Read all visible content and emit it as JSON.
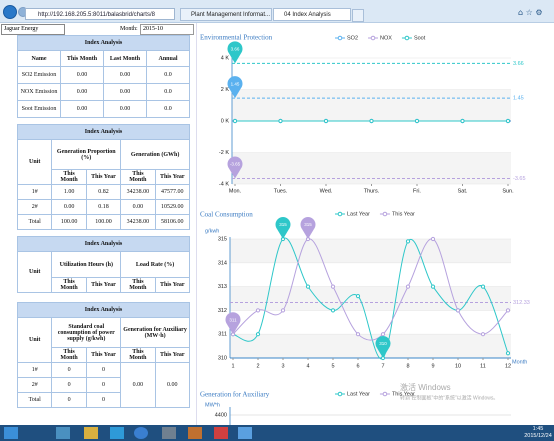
{
  "browser": {
    "url": "http://192.168.205.5:8011/balasbrid/charts/8",
    "tabs": [
      "Plant Management Informat...",
      "04 Index Analysis"
    ]
  },
  "filters": {
    "plant": "Jaguar Energy",
    "month_label": "Month:",
    "month": "2015-10"
  },
  "tables": [
    {
      "title": "Index Analysis",
      "columns": [
        "Name",
        "This Month",
        "Last Month",
        "Annual"
      ],
      "rows": [
        [
          "SO2 Emission",
          "0.00",
          "0.00",
          "0.0"
        ],
        [
          "NOX Emission",
          "0.00",
          "0.00",
          "0.0"
        ],
        [
          "Soot Emission",
          "0.00",
          "0.00",
          "0.0"
        ]
      ]
    },
    {
      "title": "Index Analysis",
      "unit_label": "Unit",
      "groups": [
        {
          "name": "Generation Proportion (%)",
          "subs": [
            "This Month",
            "This Year"
          ]
        },
        {
          "name": "Generation (GWh)",
          "subs": [
            "This Month",
            "This Year"
          ]
        }
      ],
      "rows": [
        [
          "1#",
          "1.00",
          "0.82",
          "34238.00",
          "47577.00"
        ],
        [
          "2#",
          "0.00",
          "0.18",
          "0.00",
          "10529.00"
        ],
        [
          "Total",
          "100.00",
          "100.00",
          "34238.00",
          "58106.00"
        ]
      ]
    },
    {
      "title": "Index Analysis",
      "unit_label": "Unit",
      "groups": [
        {
          "name": "Utilization Hours (h)",
          "subs": [
            "This Month",
            "This Year"
          ]
        },
        {
          "name": "Load Rate (%)",
          "subs": [
            "This Month",
            "This Year"
          ]
        }
      ],
      "rows": []
    },
    {
      "title": "Index Analysis",
      "unit_label": "Unit",
      "groups": [
        {
          "name": "Standard coal consumption of power supply (g/kwh)",
          "subs": [
            "This Month",
            "This Year"
          ]
        },
        {
          "name": "Generation for Auxiliary (MW·h)",
          "subs": [
            "This Month",
            "This Year"
          ]
        }
      ],
      "rows": [
        [
          "1#",
          "0",
          "0"
        ],
        [
          "2#",
          "0",
          "0"
        ],
        [
          "Total",
          "0",
          "0"
        ]
      ],
      "merged": [
        "0.00",
        "0.00"
      ]
    }
  ],
  "charts": [
    {
      "type": "line",
      "title": "Environmental Protection",
      "categories": [
        "Mon.",
        "Tues.",
        "Wed.",
        "Thurs.",
        "Fri.",
        "Sat.",
        "Sun."
      ],
      "series": [
        {
          "name": "SO2",
          "color": "#5ab1ef",
          "values": [
            0,
            0,
            0,
            0,
            0,
            0,
            0
          ]
        },
        {
          "name": "NOX",
          "color": "#b6a2de",
          "values": [
            0,
            0,
            0,
            0,
            0,
            0,
            0
          ]
        },
        {
          "name": "Soot",
          "color": "#2ec7c9",
          "values": [
            0,
            0,
            0,
            0,
            0,
            0,
            0
          ]
        }
      ],
      "ylim": [
        -4,
        4
      ],
      "yticks": [
        {
          "value": -4,
          "label": "-4 K"
        },
        {
          "value": -2,
          "label": "-2 K"
        },
        {
          "value": 0,
          "label": "0 K"
        },
        {
          "value": 2,
          "label": "2 K"
        },
        {
          "value": 4,
          "label": "4 K"
        }
      ],
      "markers": [
        {
          "value": 3.66,
          "color": "#2ec7c9"
        },
        {
          "value": 1.45,
          "color": "#5ab1ef"
        },
        {
          "value": -3.65,
          "color": "#b6a2de"
        }
      ]
    },
    {
      "type": "line",
      "title": "Coal Consumption",
      "y_label": "g/kwh",
      "x_label": "Month",
      "x": [
        1,
        2,
        3,
        4,
        5,
        6,
        7,
        8,
        9,
        10,
        11,
        12
      ],
      "xlim": [
        1,
        12
      ],
      "xticks": [
        1,
        2,
        3,
        4,
        5,
        6,
        7,
        8,
        9,
        10,
        11,
        12
      ],
      "ylim": [
        310,
        315
      ],
      "yticks": [
        310,
        311,
        312,
        313,
        314,
        315
      ],
      "series": [
        {
          "name": "Last Year",
          "color": "#2ec7c9",
          "values": [
            311,
            311,
            315,
            313,
            312,
            312.6,
            310,
            314.9,
            313,
            312,
            313,
            310.2
          ]
        },
        {
          "name": "This Year",
          "color": "#b6a2de",
          "values": [
            311,
            312,
            312,
            315,
            313,
            311,
            311,
            313,
            315,
            312,
            311,
            312
          ]
        }
      ],
      "markers": [
        {
          "value": 315,
          "x": 3,
          "color": "#2ec7c9"
        },
        {
          "value": 315,
          "x": 4,
          "color": "#b6a2de"
        },
        {
          "value": 310,
          "x": 7,
          "color": "#2ec7c9"
        },
        {
          "value": 311,
          "x": 1,
          "color": "#b6a2de"
        }
      ],
      "average": {
        "value": 312.33,
        "color": "#b6a2de"
      }
    },
    {
      "type": "partial",
      "title": "Generation for Auxiliary",
      "y_label": "MW*h",
      "yticks": [
        4400
      ],
      "series": [
        {
          "name": "Last Year",
          "color": "#2ec7c9"
        },
        {
          "name": "This Year",
          "color": "#b6a2de"
        }
      ]
    }
  ],
  "watermark": {
    "title": "激活 Windows",
    "text": "转到“控制面板”中的“系统”以激活 Windows。"
  },
  "taskbar": {
    "time": "1:45",
    "date": "2015/12/24"
  }
}
